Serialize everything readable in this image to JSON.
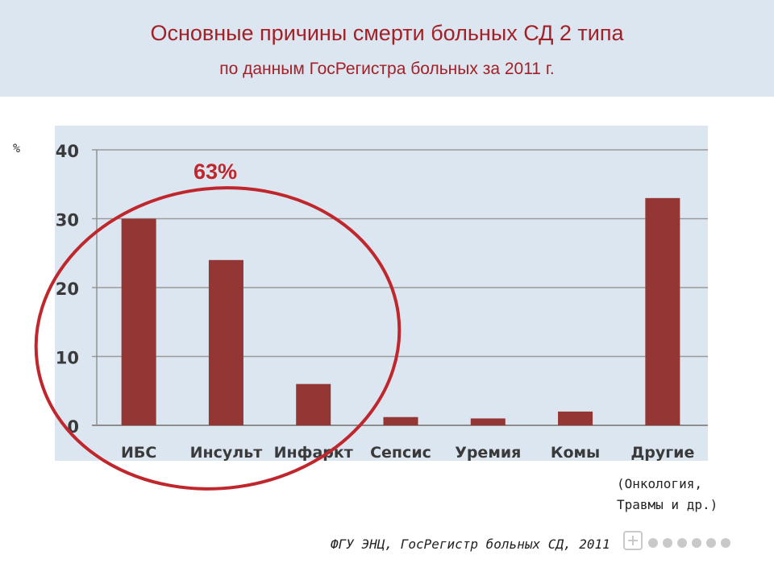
{
  "title": "Основные причины смерти больных СД 2 типа",
  "subtitle": "по данным ГосРегистра больных за 2011 г.",
  "unit_label": "%",
  "highlight": {
    "label": "63%",
    "color": "#c0272d"
  },
  "note": {
    "line1": "(Онкология,",
    "line2": "Травмы и др.)"
  },
  "source": "ФГУ ЭНЦ, ГосРегистр больных СД, 2011",
  "colors": {
    "bar": "#943634",
    "title": "#a32026",
    "panel": "#dce6f1"
  },
  "chart_data": {
    "type": "bar",
    "title": "",
    "xlabel": "",
    "ylabel": "%",
    "categories": [
      "ИБС",
      "Инсульт",
      "Инфаркт",
      "Сепсис",
      "Уремия",
      "Комы",
      "Другие"
    ],
    "values": [
      30,
      24,
      6,
      1.2,
      1,
      2,
      33
    ],
    "ylim": [
      0,
      40
    ],
    "yticks": [
      0,
      10,
      20,
      30,
      40
    ],
    "grid": true,
    "legend": "none"
  }
}
